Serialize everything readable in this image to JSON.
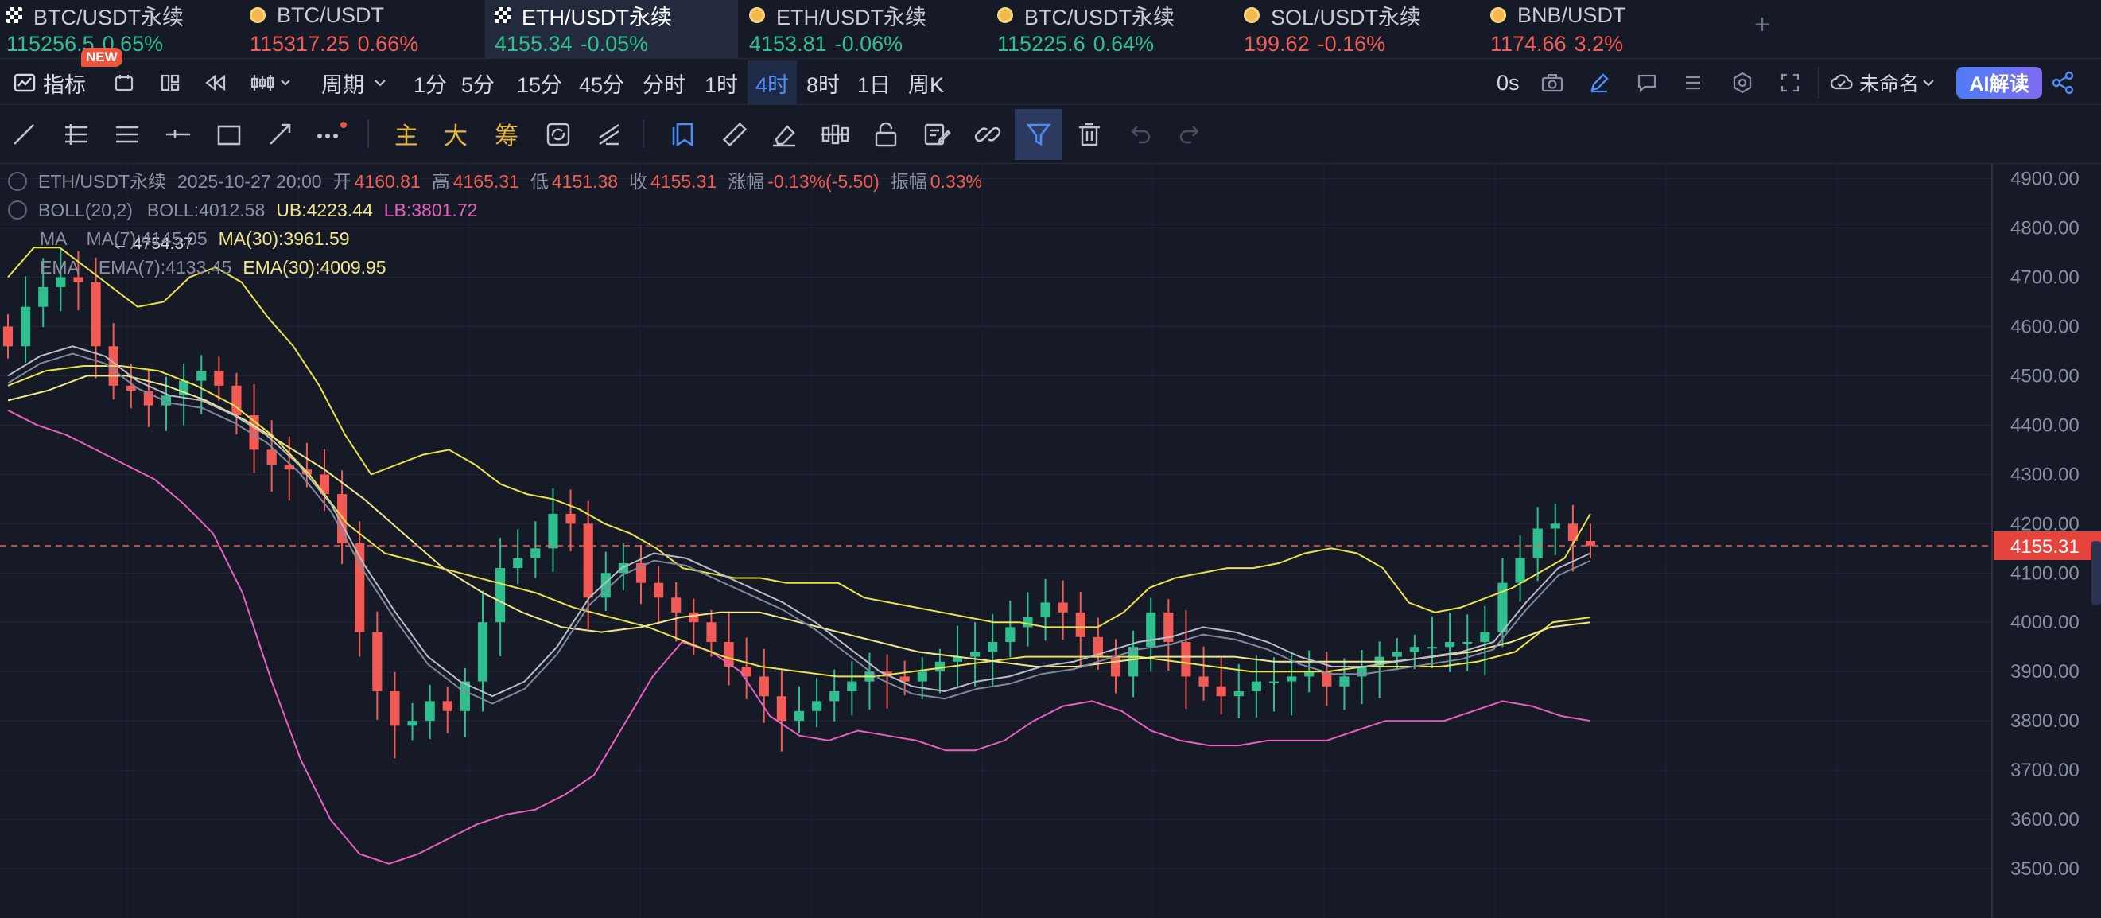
{
  "tabs": [
    {
      "name": "BTC/USDT永续",
      "price": "115256.5",
      "change": "0.65%",
      "dir": "up",
      "icon": "checker-icon"
    },
    {
      "name": "BTC/USDT",
      "price": "115317.25",
      "change": "0.66%",
      "dir": "dn",
      "icon": "coin-icon"
    },
    {
      "name": "ETH/USDT永续",
      "price": "4155.34",
      "change": "-0.05%",
      "dir": "up",
      "icon": "checker-icon",
      "active": true
    },
    {
      "name": "ETH/USDT永续",
      "price": "4153.81",
      "change": "-0.06%",
      "dir": "up",
      "icon": "coin-icon"
    },
    {
      "name": "BTC/USDT永续",
      "price": "115225.6",
      "change": "0.64%",
      "dir": "up",
      "icon": "coin-icon"
    },
    {
      "name": "SOL/USDT永续",
      "price": "199.62",
      "change": "-0.16%",
      "dir": "dn",
      "icon": "coin-icon"
    },
    {
      "name": "BNB/USDT",
      "price": "1174.66",
      "change": "3.2%",
      "dir": "dn",
      "icon": "coin-icon"
    }
  ],
  "new_badge": "NEW",
  "add_tab": "+",
  "toolbar": {
    "indicators": "指标",
    "period": "周期",
    "intervals": [
      "1分",
      "5分",
      "15分",
      "45分",
      "分时",
      "1时",
      "4时",
      "8时",
      "1日",
      "周K"
    ],
    "selected_interval": "4时",
    "countdown": "0s",
    "layout_name": "未命名",
    "ai": "AI解读"
  },
  "draw_tools": {
    "main": "主",
    "big": "大",
    "chips": "筹"
  },
  "legend": {
    "symbol": "ETH/USDT永续",
    "time": "2025-10-27 20:00",
    "open_label": "开",
    "open": "4160.81",
    "high_label": "高",
    "high": "4165.31",
    "low_label": "低",
    "low": "4151.38",
    "close_label": "收",
    "close": "4155.31",
    "chg_label": "涨幅",
    "chg": "-0.13%(-5.50)",
    "amp_label": "振幅",
    "amp": "0.33%",
    "boll_name": "BOLL(20,2)",
    "boll": "BOLL:4012.58",
    "ub": "UB:4223.44",
    "lb": "LB:3801.72",
    "ma_name": "MA",
    "ma7": "MA(7):4145.05",
    "ma30": "MA(30):3961.59",
    "ema_name": "EMA",
    "ema7": "EMA(7):4133.45",
    "ema30": "EMA(30):4009.95"
  },
  "chart_data": {
    "type": "candlestick",
    "y_ticks": [
      "4900.00",
      "4800.00",
      "4700.00",
      "4600.00",
      "4500.00",
      "4400.00",
      "4300.00",
      "4200.00",
      "4100.00",
      "4000.00",
      "3900.00",
      "3800.00",
      "3700.00",
      "3600.00",
      "3500.00"
    ],
    "ylim": [
      3400,
      4930
    ],
    "last_price": "4155.31",
    "max_marker": "← 4754.37",
    "closes": [
      4560,
      4640,
      4680,
      4700,
      4690,
      4560,
      4480,
      4470,
      4440,
      4460,
      4490,
      4510,
      4480,
      4420,
      4350,
      4320,
      4310,
      4300,
      4260,
      4160,
      3980,
      3860,
      3790,
      3800,
      3840,
      3820,
      3880,
      4000,
      4110,
      4130,
      4150,
      4220,
      4200,
      4050,
      4100,
      4120,
      4080,
      4050,
      4020,
      4000,
      3960,
      3910,
      3890,
      3850,
      3800,
      3820,
      3840,
      3860,
      3880,
      3900,
      3890,
      3880,
      3900,
      3920,
      3930,
      3940,
      3960,
      3990,
      4010,
      4040,
      4020,
      3970,
      3930,
      3890,
      3950,
      4020,
      3960,
      3890,
      3870,
      3850,
      3860,
      3880,
      3880,
      3890,
      3900,
      3870,
      3890,
      3910,
      3930,
      3940,
      3950,
      3950,
      3960,
      3960,
      3980,
      4080,
      4130,
      4190,
      4200,
      4165,
      4155
    ],
    "boll_ub": [
      4700,
      4760,
      4760,
      4720,
      4680,
      4640,
      4650,
      4700,
      4720,
      4690,
      4620,
      4560,
      4480,
      4380,
      4300,
      4320,
      4340,
      4350,
      4320,
      4280,
      4260,
      4250,
      4230,
      4200,
      4180,
      4150,
      4110,
      4100,
      4090,
      4090,
      4080,
      4080,
      4080,
      4050,
      4040,
      4030,
      4020,
      4010,
      4000,
      4000,
      3990,
      3990,
      3990,
      4020,
      4070,
      4090,
      4100,
      4110,
      4110,
      4120,
      4140,
      4150,
      4140,
      4110,
      4040,
      4020,
      4030,
      4050,
      4070,
      4100,
      4130,
      4220
    ],
    "boll_lb": [
      4430,
      4400,
      4380,
      4350,
      4320,
      4290,
      4240,
      4180,
      4060,
      3880,
      3720,
      3600,
      3530,
      3510,
      3530,
      3560,
      3590,
      3610,
      3620,
      3650,
      3690,
      3790,
      3890,
      3960,
      3940,
      3900,
      3810,
      3770,
      3760,
      3780,
      3770,
      3760,
      3740,
      3740,
      3760,
      3800,
      3830,
      3840,
      3820,
      3780,
      3760,
      3750,
      3750,
      3760,
      3760,
      3760,
      3780,
      3800,
      3800,
      3800,
      3820,
      3840,
      3830,
      3810,
      3800
    ],
    "boll_mid": [
      4480,
      4510,
      4520,
      4520,
      4510,
      4480,
      4440,
      4380,
      4300,
      4200,
      4140,
      4120,
      4100,
      4080,
      4060,
      4030,
      4010,
      3990,
      3960,
      3930,
      3910,
      3900,
      3890,
      3890,
      3900,
      3910,
      3920,
      3930,
      3930,
      3930,
      3930,
      3920,
      3910,
      3900,
      3900,
      3900,
      3910,
      3910,
      3910,
      3920,
      3940,
      4000,
      4010
    ],
    "ma_fast": [
      4500,
      4540,
      4560,
      4540,
      4490,
      4460,
      4450,
      4420,
      4380,
      4320,
      4240,
      4120,
      4020,
      3930,
      3880,
      3850,
      3880,
      3950,
      4050,
      4110,
      4140,
      4130,
      4100,
      4070,
      4040,
      4000,
      3950,
      3900,
      3870,
      3860,
      3880,
      3890,
      3910,
      3920,
      3940,
      3960,
      3970,
      3990,
      3980,
      3960,
      3930,
      3910,
      3910,
      3920,
      3930,
      3940,
      3960,
      4040,
      4110,
      4140
    ],
    "ma_slow": [
      4450,
      4470,
      4500,
      4500,
      4480,
      4450,
      4410,
      4360,
      4310,
      4250,
      4180,
      4110,
      4060,
      4020,
      3990,
      3980,
      3990,
      4010,
      4020,
      4020,
      4000,
      3980,
      3960,
      3940,
      3930,
      3920,
      3910,
      3910,
      3920,
      3930,
      3930,
      3930,
      3920,
      3920,
      3920,
      3920,
      3930,
      3940,
      3960,
      3990,
      4000
    ]
  }
}
